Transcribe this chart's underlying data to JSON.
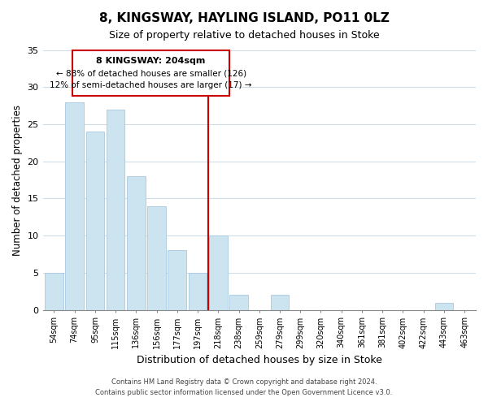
{
  "title": "8, KINGSWAY, HAYLING ISLAND, PO11 0LZ",
  "subtitle": "Size of property relative to detached houses in Stoke",
  "xlabel": "Distribution of detached houses by size in Stoke",
  "ylabel": "Number of detached properties",
  "bar_color": "#cce4f0",
  "bar_edgecolor": "#a8c8e0",
  "categories": [
    "54sqm",
    "74sqm",
    "95sqm",
    "115sqm",
    "136sqm",
    "156sqm",
    "177sqm",
    "197sqm",
    "218sqm",
    "238sqm",
    "259sqm",
    "279sqm",
    "299sqm",
    "320sqm",
    "340sqm",
    "361sqm",
    "381sqm",
    "402sqm",
    "422sqm",
    "443sqm",
    "463sqm"
  ],
  "values": [
    5,
    28,
    24,
    27,
    18,
    14,
    8,
    5,
    10,
    2,
    0,
    2,
    0,
    0,
    0,
    0,
    0,
    0,
    0,
    1,
    0
  ],
  "ylim": [
    0,
    35
  ],
  "yticks": [
    0,
    5,
    10,
    15,
    20,
    25,
    30,
    35
  ],
  "ref_line_index": 7.5,
  "ref_line_label": "8 KINGSWAY: 204sqm",
  "annotation_line1": "← 88% of detached houses are smaller (126)",
  "annotation_line2": "12% of semi-detached houses are larger (17) →",
  "box_color": "#ffffff",
  "box_edgecolor": "#cc0000",
  "ref_line_color": "#cc0000",
  "footer1": "Contains HM Land Registry data © Crown copyright and database right 2024.",
  "footer2": "Contains public sector information licensed under the Open Government Licence v3.0.",
  "background_color": "#ffffff",
  "grid_color": "#d0dce8"
}
